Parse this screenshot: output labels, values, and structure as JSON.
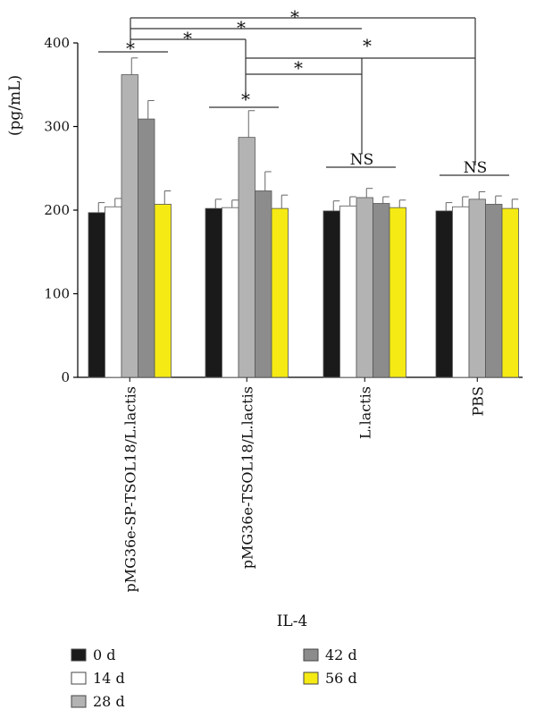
{
  "chart_data": {
    "type": "bar",
    "title": "",
    "xlabel": "IL-4",
    "ylabel": "(pg/mL)",
    "ylim": [
      0,
      400
    ],
    "yticks": [
      0,
      100,
      200,
      300,
      400
    ],
    "grid": false,
    "legend_position": "bottom",
    "categories": [
      "pMG36e-SP-TSOL18/L.lactis",
      "pMG36e-TSOL18/L.lactis",
      "L.lactis",
      "PBS"
    ],
    "series": [
      {
        "name": "0 d",
        "color": "#1a1a1a",
        "values": [
          197,
          202,
          199,
          199
        ],
        "errors": [
          12,
          11,
          12,
          10
        ]
      },
      {
        "name": "14 d",
        "color": "#ffffff",
        "values": [
          204,
          203,
          205,
          204
        ],
        "errors": [
          10,
          9,
          11,
          12
        ]
      },
      {
        "name": "28 d",
        "color": "#b3b3b3",
        "values": [
          362,
          287,
          215,
          213
        ],
        "errors": [
          20,
          32,
          11,
          9
        ]
      },
      {
        "name": "42 d",
        "color": "#8c8c8c",
        "values": [
          309,
          223,
          208,
          207
        ],
        "errors": [
          22,
          23,
          8,
          10
        ]
      },
      {
        "name": "56 d",
        "color": "#f5ea14",
        "values": [
          207,
          202,
          203,
          202
        ],
        "errors": [
          16,
          16,
          9,
          11
        ]
      }
    ],
    "annotations": {
      "star": "*",
      "ns": "NS"
    }
  }
}
